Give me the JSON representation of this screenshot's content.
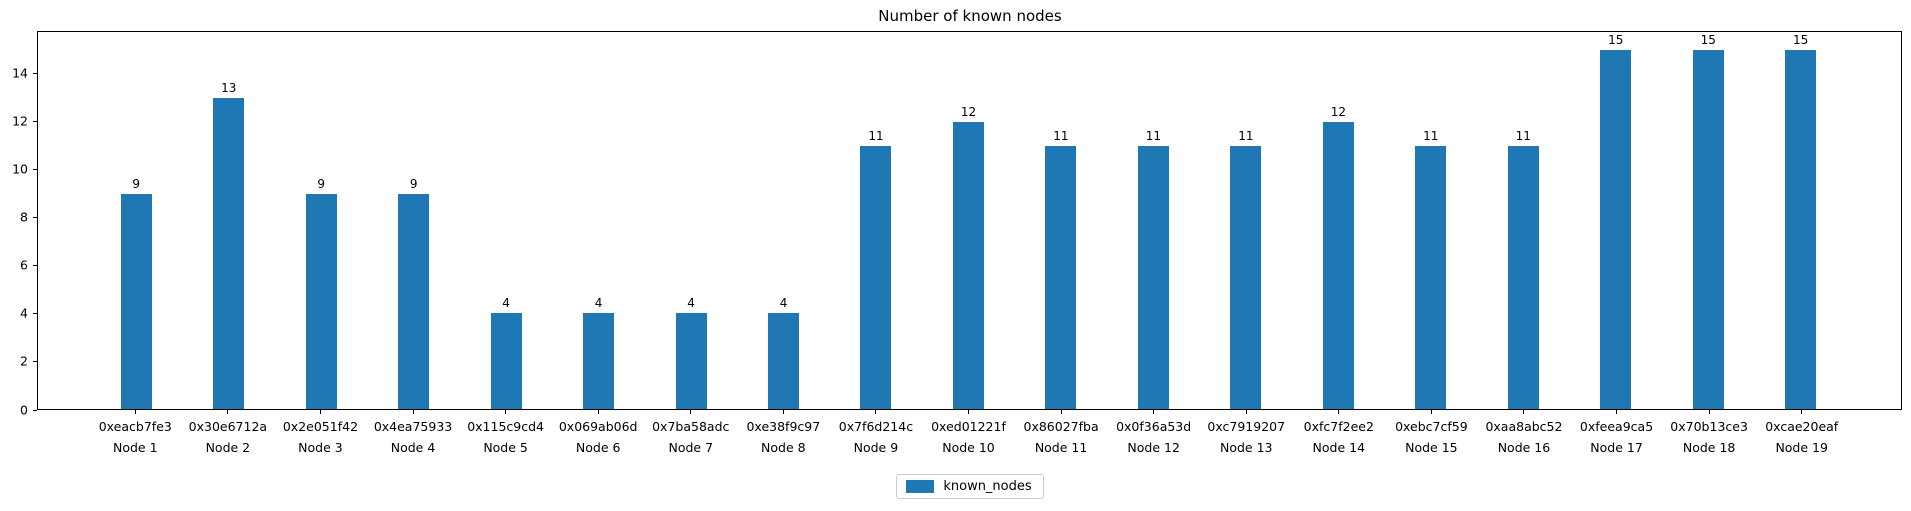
{
  "chart_data": {
    "type": "bar",
    "title": "Number of known nodes",
    "series_name": "known_nodes",
    "bar_color": "#1f77b4",
    "legend_border_color": "#cccccc",
    "ylim": [
      0,
      15.75
    ],
    "yticks": [
      0,
      2,
      4,
      6,
      8,
      10,
      12,
      14
    ],
    "grid": false,
    "legend": {
      "label": "known_nodes",
      "position": "lower center outside plot"
    },
    "categories": [
      {
        "address": "0xeacb7fe3",
        "node": "Node 1"
      },
      {
        "address": "0x30e6712a",
        "node": "Node 2"
      },
      {
        "address": "0x2e051f42",
        "node": "Node 3"
      },
      {
        "address": "0x4ea75933",
        "node": "Node 4"
      },
      {
        "address": "0x115c9cd4",
        "node": "Node 5"
      },
      {
        "address": "0x069ab06d",
        "node": "Node 6"
      },
      {
        "address": "0x7ba58adc",
        "node": "Node 7"
      },
      {
        "address": "0xe38f9c97",
        "node": "Node 8"
      },
      {
        "address": "0x7f6d214c",
        "node": "Node 9"
      },
      {
        "address": "0xed01221f",
        "node": "Node 10"
      },
      {
        "address": "0x86027fba",
        "node": "Node 11"
      },
      {
        "address": "0x0f36a53d",
        "node": "Node 12"
      },
      {
        "address": "0xc7919207",
        "node": "Node 13"
      },
      {
        "address": "0xfc7f2ee2",
        "node": "Node 14"
      },
      {
        "address": "0xebc7cf59",
        "node": "Node 15"
      },
      {
        "address": "0xaa8abc52",
        "node": "Node 16"
      },
      {
        "address": "0xfeea9ca5",
        "node": "Node 17"
      },
      {
        "address": "0x70b13ce3",
        "node": "Node 18"
      },
      {
        "address": "0xcae20eaf",
        "node": "Node 19"
      }
    ],
    "values": [
      9,
      13,
      9,
      9,
      4,
      4,
      4,
      4,
      11,
      12,
      11,
      11,
      11,
      12,
      11,
      11,
      15,
      15,
      15
    ]
  }
}
